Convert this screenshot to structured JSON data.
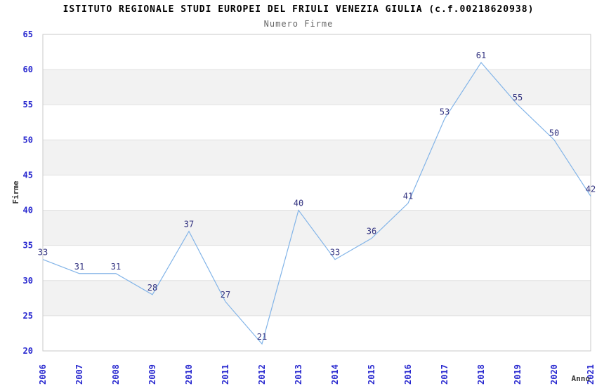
{
  "header": {
    "title": "ISTITUTO REGIONALE STUDI EUROPEI DEL FRIULI VENEZIA GIULIA (c.f.00218620938)",
    "subtitle": "Numero Firme"
  },
  "chart_data": {
    "type": "line",
    "title": "ISTITUTO REGIONALE STUDI EUROPEI DEL FRIULI VENEZIA GIULIA (c.f.00218620938)",
    "subtitle": "Numero Firme",
    "x": [
      "2006",
      "2007",
      "2008",
      "2009",
      "2010",
      "2011",
      "2012",
      "2013",
      "2014",
      "2015",
      "2016",
      "2017",
      "2018",
      "2019",
      "2020",
      "2021"
    ],
    "values": [
      33,
      31,
      31,
      28,
      37,
      27,
      21,
      40,
      33,
      36,
      41,
      53,
      61,
      55,
      50,
      42
    ],
    "xlabel": "Anno",
    "ylabel": "Firme",
    "ylim": [
      20,
      65
    ],
    "ytick_step": 5,
    "yticks": [
      20,
      25,
      30,
      35,
      40,
      45,
      50,
      55,
      60,
      65
    ],
    "grid": true,
    "legend": false,
    "band_alternating": true,
    "colors": {
      "line": "#82b4e8",
      "point_label": "#333380",
      "tick_label": "#2727cf",
      "axis_title": "#333333",
      "grid": "#e0e0e0",
      "band": "#f2f2f2",
      "border": "#c9c9c9",
      "title": "#000000",
      "subtitle": "#666666",
      "background": "#ffffff"
    }
  }
}
